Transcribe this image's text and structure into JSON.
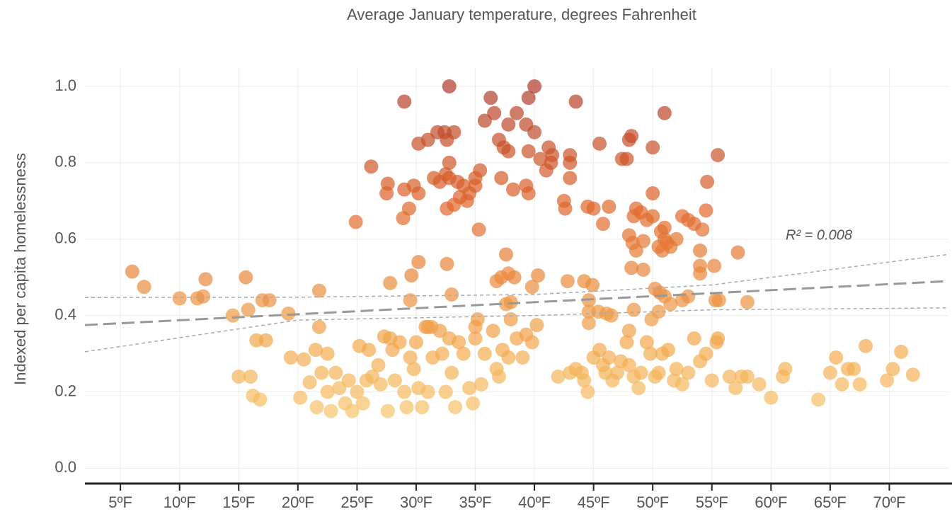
{
  "chart_data": {
    "type": "scatter",
    "title": "Average January temperature, degrees Fahrenheit",
    "y_label": "Indexed per capita homelessness",
    "annotation": "R² = 0.008",
    "xlim": [
      2,
      75
    ],
    "ylim": [
      -0.04,
      1.05
    ],
    "xticks": [
      {
        "value": 5,
        "label": "5ºF"
      },
      {
        "value": 10,
        "label": "10ºF"
      },
      {
        "value": 15,
        "label": "15ºF"
      },
      {
        "value": 20,
        "label": "20ºF"
      },
      {
        "value": 25,
        "label": "25ºF"
      },
      {
        "value": 30,
        "label": "30ºF"
      },
      {
        "value": 35,
        "label": "35ºF"
      },
      {
        "value": 40,
        "label": "40ºF"
      },
      {
        "value": 45,
        "label": "45ºF"
      },
      {
        "value": 50,
        "label": "50ºF"
      },
      {
        "value": 55,
        "label": "55ºF"
      },
      {
        "value": 60,
        "label": "60ºF"
      },
      {
        "value": 65,
        "label": "65ºF"
      },
      {
        "value": 70,
        "label": "70ºF"
      }
    ],
    "yticks": [
      {
        "value": 0,
        "label": "0.0"
      },
      0.2,
      0.4,
      0.6,
      0.8,
      {
        "value": 1,
        "label": "1.0"
      }
    ],
    "grid": true,
    "color_scale": [
      "#fbe08a",
      "#f2a84c",
      "#e0662a",
      "#a8342a"
    ],
    "x": [
      29,
      32.8,
      36.3,
      39.5,
      40,
      43.5,
      51,
      35.8,
      36.6,
      38.5,
      39.3,
      37.8,
      40,
      31,
      31.8,
      32.4,
      33.2,
      32.6,
      30.2,
      37,
      37.4,
      37.8,
      41.2,
      41.5,
      43,
      45.5,
      48.2,
      48,
      50,
      55.5,
      39.5,
      40.5,
      41,
      41.4,
      43,
      47.4,
      47.8,
      26.2,
      32.8,
      32.5,
      31.5,
      32,
      32.8,
      33.5,
      35.4,
      35,
      37.2,
      43,
      29,
      29.8,
      30.2,
      27.6,
      27.5,
      34,
      34.5,
      35,
      38.2,
      39.3,
      39.5,
      34.3,
      33.7,
      50,
      54.6,
      29.4,
      28.9,
      32.6,
      33.2,
      42.5,
      42.6,
      44.5,
      45,
      46.3,
      48.6,
      49,
      48.4,
      49.5,
      50,
      51,
      52.5,
      53,
      54.2,
      54.5,
      53.5,
      24.9,
      35.3,
      45.8,
      50.7,
      51,
      51.5,
      50.8,
      51.2,
      52,
      48,
      48.3,
      49.2,
      50.5,
      48.6,
      54,
      57.2,
      54,
      55.2,
      48.2,
      49.2,
      6,
      7,
      10,
      11.5,
      12,
      12.2,
      15.6,
      14.5,
      15.8,
      17,
      17.6,
      19.2,
      21.8,
      21.8,
      27.8,
      29.6,
      30.2,
      29.5,
      32.6,
      33,
      36.8,
      37.2,
      37.6,
      37.8,
      38.3,
      39.8,
      40.3,
      38,
      37.6,
      42.8,
      44.2,
      44.9,
      44.6,
      44.6,
      45.4,
      46.1,
      46.5,
      48.4,
      50.2,
      50.6,
      51,
      51.5,
      52.5,
      53,
      54,
      55.3,
      55.6,
      58,
      50.5,
      49.9,
      35,
      35.2,
      40.2,
      44.6,
      31,
      31.3,
      48,
      15,
      16,
      16.2,
      16.8,
      16.5,
      17.3,
      19.4,
      20.5,
      20.2,
      21,
      21.6,
      21.5,
      22,
      22.5,
      22.5,
      22.8,
      23.2,
      23.5,
      24,
      24.3,
      24.6,
      25,
      25.2,
      25.5,
      25.8,
      26,
      26.3,
      26.8,
      27,
      27.3,
      27.6,
      27.8,
      28,
      28.2,
      28.6,
      29,
      29.2,
      29.5,
      29.8,
      30,
      30.2,
      30.5,
      30.8,
      31,
      31.4,
      32,
      32.2,
      32.5,
      32.8,
      33,
      33.3,
      33.6,
      34,
      34.5,
      34.8,
      35,
      35.5,
      35.8,
      36.5,
      36.8,
      37,
      37.3,
      37.8,
      38,
      38.5,
      39,
      39.3,
      39.8,
      42,
      43,
      43.5,
      44,
      44.2,
      44.5,
      45,
      45.5,
      45.8,
      46,
      46.3,
      46.6,
      47,
      47.3,
      47.8,
      48,
      48.4,
      48.8,
      49,
      49.5,
      49.8,
      50.2,
      50.5,
      50.8,
      51.3,
      51.8,
      52,
      52.5,
      53,
      53.5,
      54,
      54.5,
      55,
      55.4,
      55.5,
      56.5,
      57,
      57.5,
      58,
      59,
      60,
      61,
      61.2,
      64,
      65,
      65.5,
      66,
      66.5,
      67,
      67.5,
      68,
      69.8,
      70.3,
      71,
      72
    ],
    "values": [
      0.96,
      1.0,
      0.97,
      0.97,
      1.0,
      0.96,
      0.93,
      0.91,
      0.93,
      0.93,
      0.9,
      0.9,
      0.88,
      0.86,
      0.88,
      0.88,
      0.88,
      0.86,
      0.85,
      0.86,
      0.84,
      0.83,
      0.84,
      0.82,
      0.82,
      0.85,
      0.87,
      0.86,
      0.84,
      0.82,
      0.83,
      0.81,
      0.78,
      0.8,
      0.8,
      0.81,
      0.81,
      0.79,
      0.8,
      0.77,
      0.76,
      0.75,
      0.76,
      0.75,
      0.78,
      0.76,
      0.76,
      0.76,
      0.73,
      0.74,
      0.72,
      0.745,
      0.72,
      0.74,
      0.72,
      0.74,
      0.73,
      0.74,
      0.72,
      0.7,
      0.71,
      0.72,
      0.75,
      0.68,
      0.655,
      0.68,
      0.69,
      0.7,
      0.68,
      0.685,
      0.68,
      0.685,
      0.68,
      0.67,
      0.66,
      0.65,
      0.66,
      0.63,
      0.66,
      0.65,
      0.625,
      0.675,
      0.64,
      0.645,
      0.625,
      0.64,
      0.62,
      0.6,
      0.58,
      0.57,
      0.59,
      0.6,
      0.61,
      0.59,
      0.595,
      0.58,
      0.57,
      0.57,
      0.565,
      0.53,
      0.53,
      0.525,
      0.52,
      0.515,
      0.475,
      0.445,
      0.445,
      0.45,
      0.495,
      0.5,
      0.4,
      0.415,
      0.44,
      0.44,
      0.405,
      0.465,
      0.37,
      0.485,
      0.505,
      0.54,
      0.44,
      0.535,
      0.455,
      0.49,
      0.5,
      0.56,
      0.51,
      0.5,
      0.475,
      0.505,
      0.435,
      0.43,
      0.49,
      0.49,
      0.48,
      0.44,
      0.41,
      0.41,
      0.405,
      0.4,
      0.415,
      0.47,
      0.46,
      0.45,
      0.43,
      0.44,
      0.45,
      0.51,
      0.44,
      0.44,
      0.435,
      0.41,
      0.39,
      0.37,
      0.39,
      0.375,
      0.38,
      0.37,
      0.37,
      0.36,
      0.24,
      0.24,
      0.19,
      0.18,
      0.335,
      0.335,
      0.29,
      0.285,
      0.185,
      0.225,
      0.16,
      0.31,
      0.25,
      0.2,
      0.3,
      0.15,
      0.25,
      0.21,
      0.17,
      0.23,
      0.15,
      0.2,
      0.32,
      0.17,
      0.23,
      0.31,
      0.24,
      0.27,
      0.22,
      0.345,
      0.15,
      0.34,
      0.31,
      0.23,
      0.33,
      0.2,
      0.16,
      0.29,
      0.26,
      0.33,
      0.21,
      0.16,
      0.37,
      0.2,
      0.29,
      0.36,
      0.3,
      0.2,
      0.34,
      0.25,
      0.16,
      0.33,
      0.3,
      0.21,
      0.17,
      0.34,
      0.22,
      0.3,
      0.36,
      0.26,
      0.24,
      0.31,
      0.29,
      0.39,
      0.34,
      0.29,
      0.35,
      0.33,
      0.24,
      0.25,
      0.26,
      0.25,
      0.23,
      0.2,
      0.29,
      0.31,
      0.27,
      0.25,
      0.29,
      0.23,
      0.25,
      0.28,
      0.33,
      0.27,
      0.24,
      0.21,
      0.25,
      0.33,
      0.3,
      0.24,
      0.25,
      0.3,
      0.31,
      0.23,
      0.26,
      0.22,
      0.25,
      0.34,
      0.28,
      0.3,
      0.23,
      0.33,
      0.34,
      0.24,
      0.21,
      0.24,
      0.24,
      0.22,
      0.185,
      0.24,
      0.26,
      0.18,
      0.25,
      0.29,
      0.22,
      0.26,
      0.26,
      0.22,
      0.32,
      0.23,
      0.26,
      0.305,
      0.245
    ],
    "trend": {
      "color": "#999999",
      "x": [
        2,
        75
      ],
      "values": [
        0.375,
        0.49
      ]
    },
    "confidence_upper": {
      "color": "#aaaaaa",
      "x": [
        2,
        20,
        40,
        55,
        75
      ],
      "values": [
        0.447,
        0.448,
        0.455,
        0.48,
        0.56
      ]
    },
    "confidence_lower": {
      "color": "#aaaaaa",
      "x": [
        2,
        20,
        40,
        55,
        75
      ],
      "values": [
        0.305,
        0.388,
        0.4,
        0.415,
        0.42
      ]
    }
  }
}
